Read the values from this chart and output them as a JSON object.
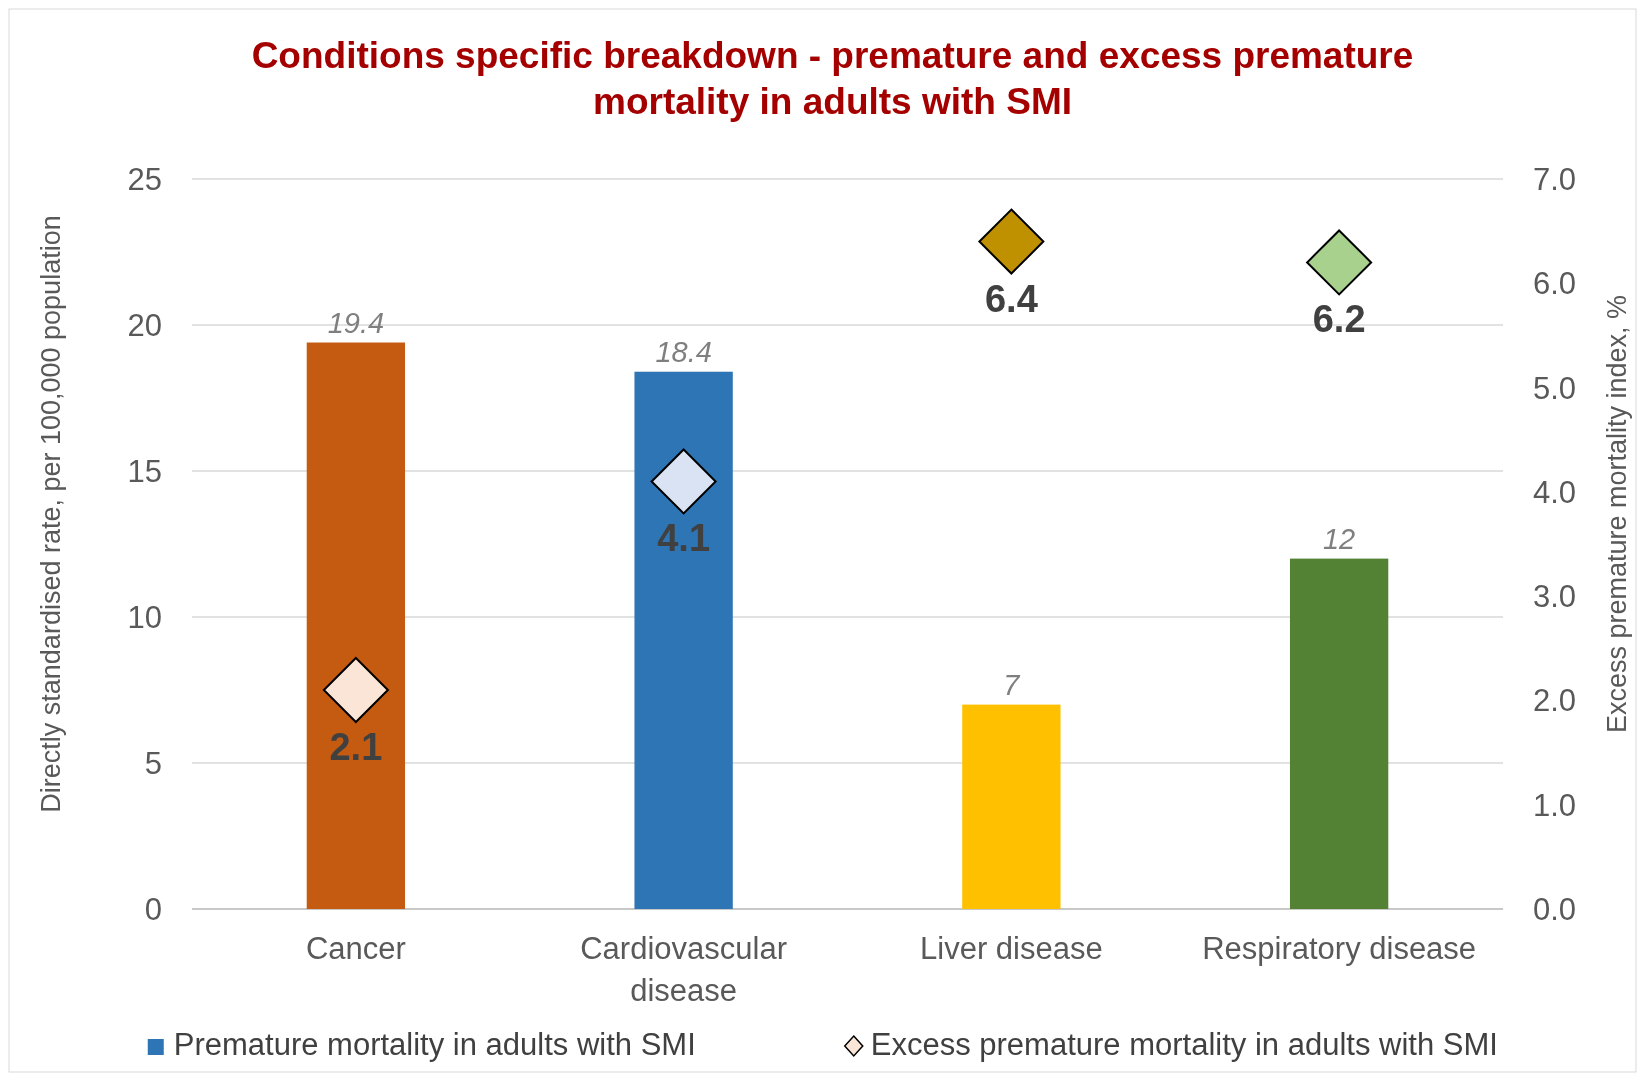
{
  "chart_data": {
    "type": "bar",
    "title": "Conditions specific breakdown - premature and excess premature mortality in adults with SMI",
    "categories": [
      "Cancer",
      "Cardiovascular disease",
      "Liver disease",
      "Respiratory disease"
    ],
    "series": [
      {
        "name": "Premature mortality in adults with SMI",
        "color": "#2e75b6",
        "colors": [
          "#c55a11",
          "#2e75b6",
          "#ffc000",
          "#548235"
        ],
        "values": [
          19.4,
          18.4,
          7,
          12
        ]
      },
      {
        "name": "Excess premature mortality in adults with SMI",
        "type": "scatter",
        "axis": "y2",
        "x": [
          "Cancer",
          "Cardiovascular disease",
          "Liver disease",
          "Respiratory disease"
        ],
        "color": "#fbe5d6",
        "colors": [
          "#fbe5d6",
          "#dae3f3",
          "#bf9000",
          "#a9d18e"
        ],
        "values": [
          2.1,
          4.1,
          6.4,
          6.2
        ]
      }
    ],
    "ylabel": "Directly standardised rate, per 100,000 population",
    "y2label": "Excess premature mortality index, %",
    "ylim": [
      0,
      25
    ],
    "yticks": [
      0,
      5,
      10,
      15,
      20,
      25
    ],
    "y2lim": [
      0,
      7
    ],
    "y2ticks": [
      {
        "value": 0,
        "label": "0.0"
      },
      {
        "value": 1,
        "label": "1.0"
      },
      {
        "value": 2,
        "label": "2.0"
      },
      {
        "value": 3,
        "label": "3.0"
      },
      {
        "value": 4,
        "label": "4.0"
      },
      {
        "value": 5,
        "label": "5.0"
      },
      {
        "value": 6,
        "label": "6.0"
      },
      {
        "value": 7,
        "label": "7.0"
      }
    ],
    "grid": "y",
    "legend": "bottom",
    "marker": "diamond",
    "data_labels": true
  }
}
